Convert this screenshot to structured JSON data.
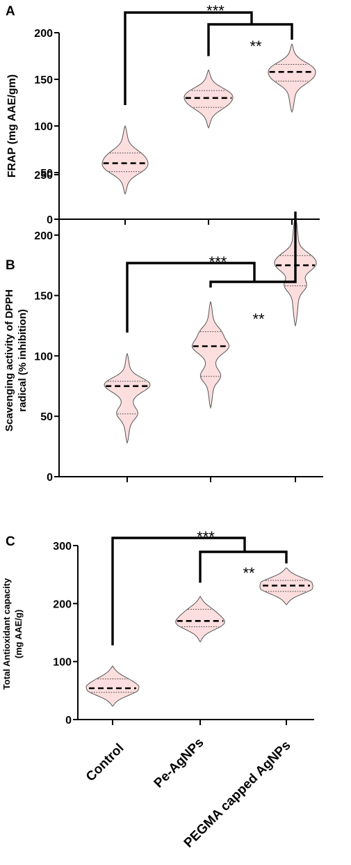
{
  "colors": {
    "violin_fill": "#fcdede",
    "violin_stroke": "#555555",
    "ink": "#000000"
  },
  "categories": [
    "Control",
    "Pe-AgNPs",
    "PEGMA capped AgNPs"
  ],
  "chart_data": [
    {
      "type": "violin",
      "panel": "A",
      "ylabel": "FRAP (mg AAE/gm)",
      "ylim": [
        0,
        200
      ],
      "yticks": [
        0,
        50,
        100,
        150,
        200
      ],
      "categories": [
        "Control",
        "Pe-AgNPs",
        "PEGMA capped AgNPs"
      ],
      "series": [
        {
          "min": 27,
          "max": 100,
          "q1": 51,
          "median": 60,
          "q3": 71
        },
        {
          "min": 98,
          "max": 160,
          "q1": 120,
          "median": 130,
          "q3": 138
        },
        {
          "min": 115,
          "max": 188,
          "q1": 148,
          "median": 158,
          "q3": 166
        }
      ],
      "comparisons": [
        {
          "from": 0,
          "to": 2,
          "label": "***"
        },
        {
          "from": 1,
          "to": 2,
          "label": "**"
        }
      ]
    },
    {
      "type": "violin",
      "panel": "B",
      "ylabel": [
        "Scavenging activity of DPPH",
        "radical (% inhibition)"
      ],
      "ylim": [
        0,
        250
      ],
      "yticks": [
        0,
        50,
        100,
        150,
        200,
        250
      ],
      "categories": [
        "Control",
        "Pe-AgNPs",
        "PEGMA capped AgNPs"
      ],
      "series": [
        {
          "min": 28,
          "max": 102,
          "q1": 52,
          "median": 75,
          "q3": 79
        },
        {
          "min": 57,
          "max": 145,
          "q1": 83,
          "median": 108,
          "q3": 120
        },
        {
          "min": 125,
          "max": 216,
          "q1": 158,
          "median": 175,
          "q3": 183
        }
      ],
      "comparisons": [
        {
          "from": 0,
          "to": 2,
          "label": "***"
        },
        {
          "from": 1,
          "to": 2,
          "label": "**"
        }
      ]
    },
    {
      "type": "violin",
      "panel": "C",
      "ylabel": [
        "Total Antioxidant capacity",
        "(mg AAE/g)"
      ],
      "ylim": [
        0,
        300
      ],
      "yticks": [
        0,
        100,
        200,
        300
      ],
      "categories": [
        "Control",
        "Pe-AgNPs",
        "PEGMA capped AgNPs"
      ],
      "series": [
        {
          "min": 23,
          "max": 92,
          "q1": 47,
          "median": 54,
          "q3": 70
        },
        {
          "min": 134,
          "max": 212,
          "q1": 160,
          "median": 170,
          "q3": 190
        },
        {
          "min": 198,
          "max": 262,
          "q1": 221,
          "median": 231,
          "q3": 240
        }
      ],
      "comparisons": [
        {
          "from": 0,
          "to": 2,
          "label": "***"
        },
        {
          "from": 1,
          "to": 2,
          "label": "**"
        }
      ]
    }
  ]
}
